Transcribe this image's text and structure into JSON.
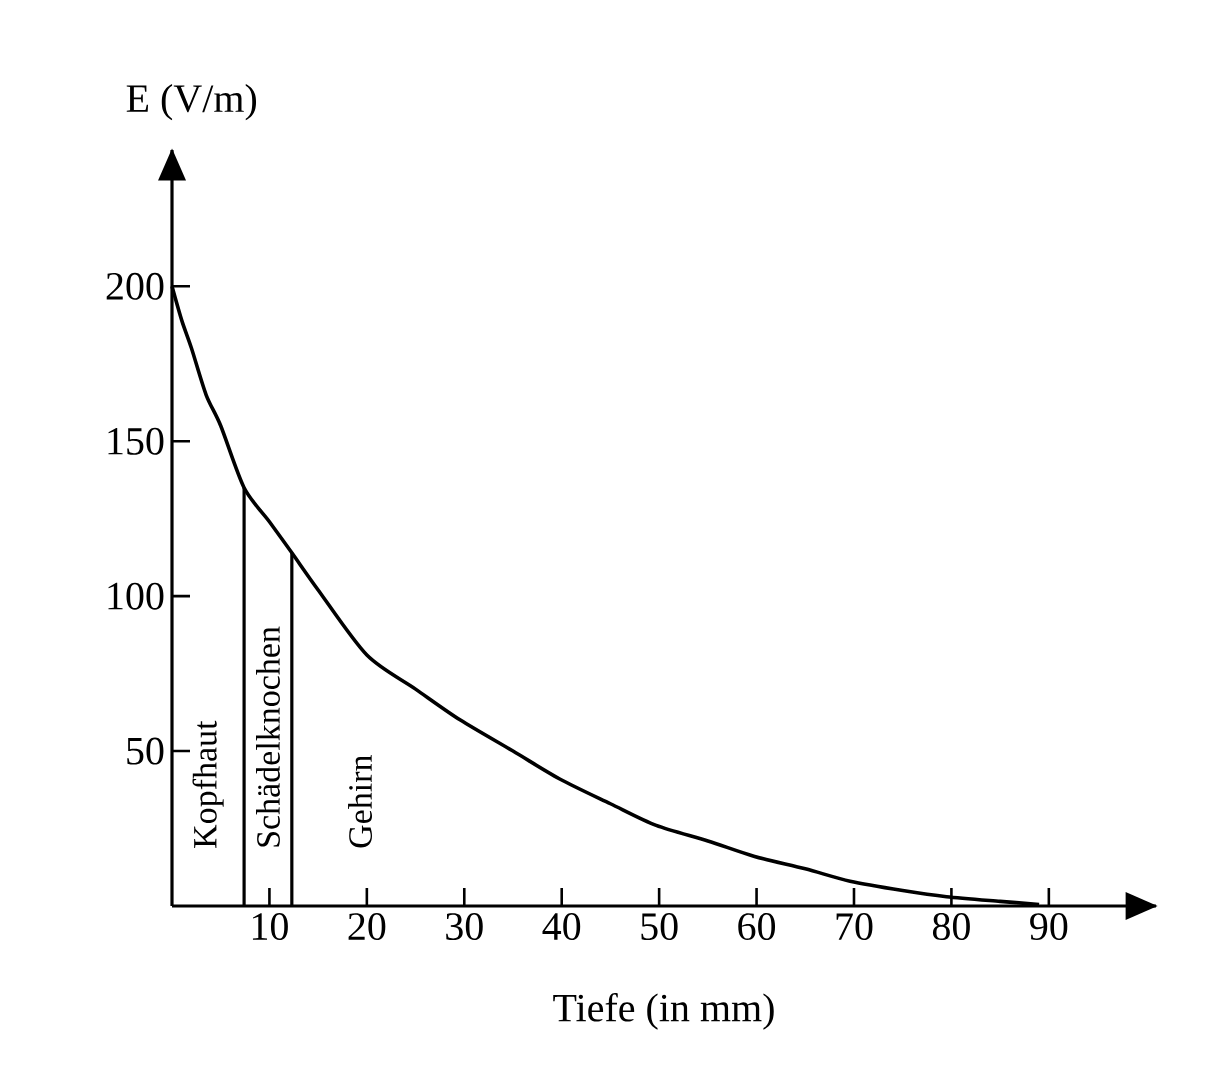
{
  "chart_data": {
    "type": "line",
    "xlabel": "Tiefe (in mm)",
    "ylabel": "E (V/m)",
    "x": [
      0,
      1,
      2,
      3.5,
      5,
      7.4,
      10,
      12.3,
      15,
      20,
      25,
      29.6,
      35,
      39.8,
      45,
      49.7,
      55,
      59.8,
      65,
      69.6,
      75,
      79.5,
      85,
      89
    ],
    "series": [
      {
        "color": "#000000",
        "values": [
          200,
          189,
          180,
          165,
          155,
          135,
          124,
          114,
          102,
          81,
          70,
          60,
          50,
          41,
          33,
          26,
          21,
          16,
          12,
          8,
          5,
          3,
          1.5,
          0.5
        ]
      }
    ],
    "xlim": [
      0,
      101
    ],
    "ylim": [
      0,
      244
    ],
    "xticks": [
      10,
      20,
      30,
      40,
      50,
      60,
      70,
      80,
      90
    ],
    "yticks": [
      50,
      100,
      150,
      200
    ],
    "ref_lines": [
      {
        "axis": "x",
        "value": 7.4
      },
      {
        "axis": "x",
        "value": 12.3
      }
    ],
    "annotations": [
      "Kopfhaut",
      "Schädelknochen",
      "Gehirn"
    ],
    "marker": "none",
    "line_style": "solid",
    "grid": false
  }
}
